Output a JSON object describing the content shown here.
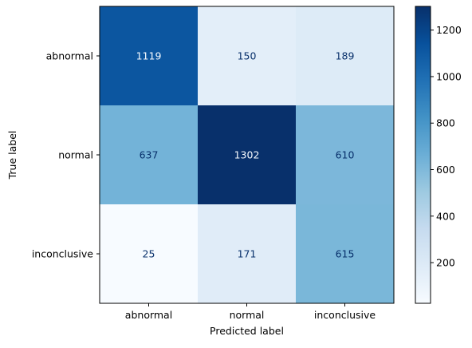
{
  "chart_data": {
    "type": "heatmap",
    "title": "",
    "xlabel": "Predicted label",
    "ylabel": "True label",
    "x_categories": [
      "abnormal",
      "normal",
      "inconclusive"
    ],
    "y_categories": [
      "abnormal",
      "normal",
      "inconclusive"
    ],
    "values": [
      [
        1119,
        150,
        189
      ],
      [
        637,
        1302,
        610
      ],
      [
        25,
        171,
        615
      ]
    ],
    "colormap": "Blues",
    "colorbar": {
      "range": [
        25,
        1302
      ],
      "ticks": [
        "200",
        "400",
        "600",
        "800",
        "1000",
        "1200"
      ]
    },
    "grid": false
  }
}
